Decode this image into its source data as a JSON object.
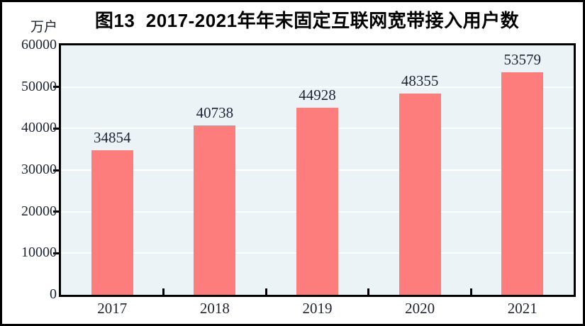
{
  "figure": {
    "title": "图13  2017-2021年年末固定互联网宽带接入用户数",
    "y_axis_unit": "万户"
  },
  "chart_data": {
    "type": "bar",
    "title": "图13  2017-2021年年末固定互联网宽带接入用户数",
    "categories": [
      "2017",
      "2018",
      "2019",
      "2020",
      "2021"
    ],
    "values": [
      34854,
      40738,
      44928,
      48355,
      53579
    ],
    "data_labels": [
      "34854",
      "40738",
      "44928",
      "48355",
      "53579"
    ],
    "xlabel": "",
    "ylabel": "万户",
    "ylim": [
      0,
      60000
    ],
    "yticks": [
      0,
      10000,
      20000,
      30000,
      40000,
      50000,
      60000
    ],
    "ytick_labels": [
      "0",
      "10000",
      "20000",
      "30000",
      "40000",
      "50000",
      "60000"
    ],
    "grid": "horizontal",
    "legend": "none",
    "colors": {
      "bar": "#fd7d7d",
      "plot_background": "#ecf3f6",
      "gridline": "#ffffff",
      "axis": "#000000",
      "text": "#1c2333"
    }
  }
}
